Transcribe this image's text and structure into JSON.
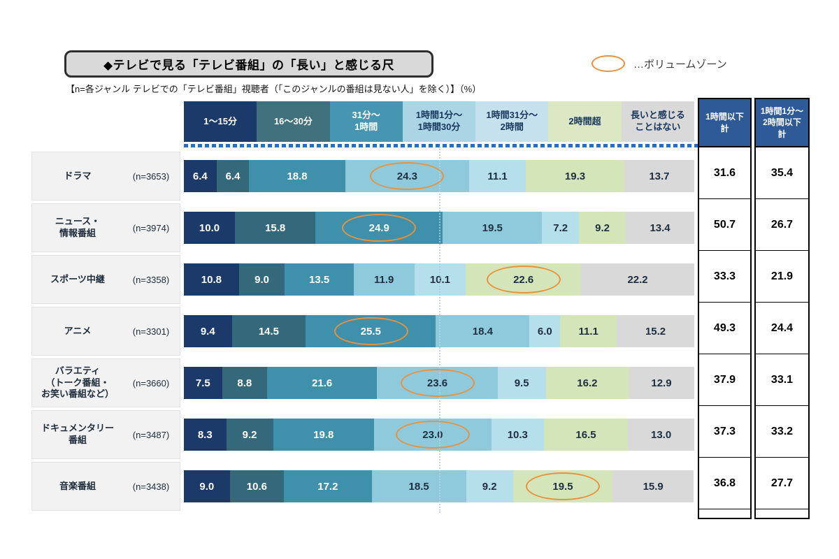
{
  "title": "◆テレビで見る「テレビ番組」の「長い」と感じる尺",
  "subtitle": "【n=各ジャンル テレビでの「テレビ番組」視聴者（「このジャンルの番組は見ない人」を除く）】（%）",
  "legend": {
    "label": "…ボリュームゾーン",
    "marker": "volume-zone-ellipse",
    "marker_color": "#E8923F"
  },
  "chart_data": {
    "type": "bar",
    "stacked": true,
    "orientation": "horizontal",
    "unit": "%",
    "x_max": 100,
    "gridline_at_percent": 50,
    "volume_zone_color": "#E8923F",
    "columns": [
      {
        "label": "1〜15分",
        "header_bg": "#1B3A69",
        "header_text": "#FFFFFF",
        "segment_bg": "#1B3A69",
        "segment_text": "#FFFFFF"
      },
      {
        "label": "16〜30分",
        "header_bg": "#40717D",
        "header_text": "#FFFFFF",
        "segment_bg": "#34697B",
        "segment_text": "#FFFFFF"
      },
      {
        "label": "31分〜\n1時間",
        "header_bg": "#4796B1",
        "header_text": "#FFFFFF",
        "segment_bg": "#3F90AA",
        "segment_text": "#FFFFFF"
      },
      {
        "label": "1時間1分〜\n1時間30分",
        "header_bg": "#ABD4E4",
        "header_text": "#17365D",
        "segment_bg": "#8FCADC",
        "segment_text": "#1E2F40"
      },
      {
        "label": "1時間31分〜\n2時間",
        "header_bg": "#C5E1ED",
        "header_text": "#17365D",
        "segment_bg": "#B5DFEA",
        "segment_text": "#1E2F40"
      },
      {
        "label": "2時間超",
        "header_bg": "#DCE8C4",
        "header_text": "#17365D",
        "segment_bg": "#D5E5BA",
        "segment_text": "#1E2F40"
      },
      {
        "label": "長いと感じる\nことはない",
        "header_bg": "#D9D9D9",
        "header_text": "#17365D",
        "segment_bg": "#D9D9D9",
        "segment_text": "#1E2F40"
      }
    ],
    "summary_columns": [
      {
        "label": "1時間以下\n計"
      },
      {
        "label": "1時間1分〜\n2時間以下\n計"
      }
    ],
    "rows": [
      {
        "genre": "ドラマ",
        "n": "(n=3653)",
        "values": [
          6.4,
          6.4,
          18.8,
          24.3,
          11.1,
          19.3,
          13.7
        ],
        "volume_zone_index": 3,
        "summary": [
          31.6,
          35.4
        ]
      },
      {
        "genre": "ニュース・\n情報番組",
        "n": "(n=3974)",
        "values": [
          10.0,
          15.8,
          24.9,
          19.5,
          7.2,
          9.2,
          13.4
        ],
        "volume_zone_index": 2,
        "summary": [
          50.7,
          26.7
        ]
      },
      {
        "genre": "スポーツ中継",
        "n": "(n=3358)",
        "values": [
          10.8,
          9.0,
          13.5,
          11.9,
          10.1,
          22.6,
          22.2
        ],
        "volume_zone_index": 5,
        "summary": [
          33.3,
          21.9
        ]
      },
      {
        "genre": "アニメ",
        "n": "(n=3301)",
        "values": [
          9.4,
          14.5,
          25.5,
          18.4,
          6.0,
          11.1,
          15.2
        ],
        "volume_zone_index": 2,
        "summary": [
          49.3,
          24.4
        ]
      },
      {
        "genre": "バラエティ\n（トーク番組・\nお笑い番組など）",
        "n": "(n=3660)",
        "values": [
          7.5,
          8.8,
          21.6,
          23.6,
          9.5,
          16.2,
          12.9
        ],
        "volume_zone_index": 3,
        "summary": [
          37.9,
          33.1
        ]
      },
      {
        "genre": "ドキュメンタリー\n番組",
        "n": "(n=3487)",
        "values": [
          8.3,
          9.2,
          19.8,
          23.0,
          10.3,
          16.5,
          13.0
        ],
        "volume_zone_index": 3,
        "summary": [
          37.3,
          33.2
        ]
      },
      {
        "genre": "音楽番組",
        "n": "(n=3438)",
        "values": [
          9.0,
          10.6,
          17.2,
          18.5,
          9.2,
          19.5,
          15.9
        ],
        "volume_zone_index": 5,
        "summary": [
          36.8,
          27.7
        ]
      }
    ]
  }
}
